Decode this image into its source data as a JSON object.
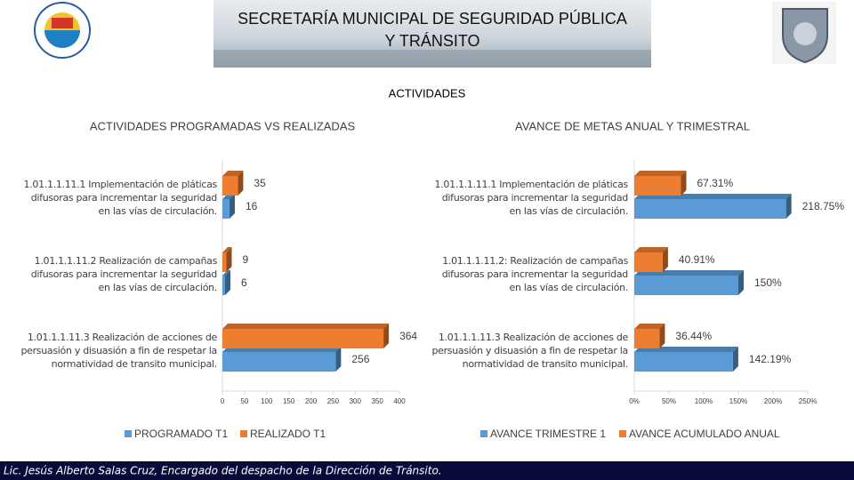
{
  "header": {
    "title_lines": [
      "SECRETARÍA MUNICIPAL DE SEGURIDAD PÚBLICA",
      "Y TRÁNSITO"
    ]
  },
  "section_title": "ACTIVIDADES",
  "chart_data": [
    {
      "type": "bar",
      "orientation": "horizontal",
      "title": "ACTIVIDADES PROGRAMADAS VS REALIZADAS",
      "categories": [
        "1.01.1.1.11.1 Implementación de pláticas difusoras para incrementar la seguridad en las vías de circulación.",
        "1.01.1.1.11.2 Realización de campañas difusoras para incrementar la seguridad en las vías de circulación.",
        "1.01.1.1.11.3 Realización de acciones de persuasión y disuasión a fin de respetar la normatividad de transito municipal."
      ],
      "series": [
        {
          "name": "PROGRAMADO T1",
          "color": "#5b9bd5",
          "values": [
            16,
            6,
            256
          ]
        },
        {
          "name": "REALIZADO T1",
          "color": "#ed7d31",
          "values": [
            35,
            9,
            364
          ]
        }
      ],
      "xlim": [
        0,
        400
      ],
      "xticks": [
        0,
        50,
        100,
        150,
        200,
        250,
        300,
        350,
        400
      ],
      "legend": "bottom"
    },
    {
      "type": "bar",
      "orientation": "horizontal",
      "title": "AVANCE DE METAS ANUAL Y TRIMESTRAL",
      "categories": [
        "1.01.1.1.11.1 Implementación de pláticas difusoras para incrementar la seguridad en las vías de circulación.",
        "1.01.1.1.11.2: Realización de campañas difusoras para incrementar la seguridad en las vías de circulación.",
        "1.01.1.1.11.3 Realización de acciones de persuasión y disuasión a fin de respetar la normatividad de transito municipal."
      ],
      "series": [
        {
          "name": "AVANCE TRIMESTRE 1",
          "color": "#5b9bd5",
          "values": [
            218.75,
            150,
            142.19
          ],
          "value_labels": [
            "218.75%",
            "150%",
            "142.19%"
          ]
        },
        {
          "name": "AVANCE ACUMULADO ANUAL",
          "color": "#ed7d31",
          "values": [
            67.31,
            40.91,
            36.44
          ],
          "value_labels": [
            "67.31%",
            "40.91%",
            "36.44%"
          ]
        }
      ],
      "xlim": [
        0,
        250
      ],
      "xticks": [
        {
          "value": 0,
          "label": "0%"
        },
        {
          "value": 50,
          "label": "50%"
        },
        {
          "value": 100,
          "label": "100%"
        },
        {
          "value": 150,
          "label": "150%"
        },
        {
          "value": 200,
          "label": "200%"
        },
        {
          "value": 250,
          "label": "250%"
        }
      ],
      "legend": "bottom"
    }
  ],
  "footer": "Lic. Jesús Alberto Salas Cruz, Encargado del despacho de la Dirección de Tránsito."
}
